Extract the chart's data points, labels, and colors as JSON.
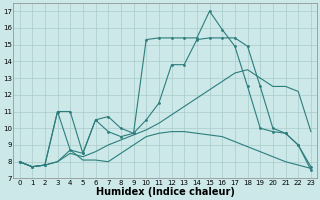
{
  "bg_color": "#cce8e8",
  "grid_color": "#aacccc",
  "line_color": "#2d7d7d",
  "xlabel": "Humidex (Indice chaleur)",
  "xlabel_fontsize": 7,
  "xlim": [
    -0.5,
    23.5
  ],
  "ylim": [
    7,
    17.5
  ],
  "xticks": [
    0,
    1,
    2,
    3,
    4,
    5,
    6,
    7,
    8,
    9,
    10,
    11,
    12,
    13,
    14,
    15,
    16,
    17,
    18,
    19,
    20,
    21,
    22,
    23
  ],
  "yticks": [
    7,
    8,
    9,
    10,
    11,
    12,
    13,
    14,
    15,
    16,
    17
  ],
  "line1_x": [
    0,
    1,
    2,
    3,
    4,
    5,
    6,
    7,
    8,
    9,
    10,
    11,
    12,
    13,
    14,
    15,
    16,
    17,
    18,
    19,
    20,
    21,
    22,
    23
  ],
  "line1_y": [
    8.0,
    7.7,
    7.8,
    8.0,
    8.7,
    8.1,
    8.1,
    8.0,
    8.5,
    9.0,
    9.5,
    9.7,
    9.8,
    9.8,
    9.7,
    9.6,
    9.5,
    9.2,
    8.9,
    8.6,
    8.3,
    8.0,
    7.8,
    7.6
  ],
  "line2_x": [
    0,
    1,
    2,
    3,
    4,
    5,
    6,
    7,
    8,
    9,
    10,
    11,
    12,
    13,
    14,
    15,
    16,
    17,
    18,
    19,
    20,
    21,
    22,
    23
  ],
  "line2_y": [
    8.0,
    7.7,
    7.8,
    8.0,
    8.5,
    8.3,
    8.6,
    9.0,
    9.3,
    9.6,
    9.9,
    10.3,
    10.8,
    11.3,
    11.8,
    12.3,
    12.8,
    13.3,
    13.5,
    13.0,
    12.5,
    12.5,
    12.2,
    9.8
  ],
  "line3_x": [
    0,
    1,
    2,
    3,
    4,
    5,
    6,
    7,
    8,
    9,
    10,
    11,
    12,
    13,
    14,
    15,
    16,
    17,
    18,
    19,
    20,
    21,
    22,
    23
  ],
  "line3_y": [
    8.0,
    7.7,
    7.8,
    11.0,
    11.0,
    8.5,
    10.5,
    10.7,
    10.0,
    9.7,
    10.5,
    11.5,
    13.8,
    13.8,
    15.3,
    15.4,
    15.4,
    15.4,
    14.9,
    12.5,
    10.0,
    9.7,
    9.0,
    7.7
  ],
  "line4_x": [
    0,
    1,
    2,
    3,
    4,
    5,
    6,
    7,
    8,
    9,
    10,
    11,
    12,
    13,
    14,
    15,
    16,
    17,
    18,
    19,
    20,
    21,
    22,
    23
  ],
  "line4_y": [
    8.0,
    7.7,
    7.8,
    11.0,
    8.7,
    8.5,
    10.5,
    9.8,
    9.5,
    9.7,
    15.3,
    15.4,
    15.4,
    15.4,
    15.4,
    17.0,
    15.9,
    14.9,
    12.5,
    10.0,
    9.8,
    9.7,
    9.0,
    7.5
  ]
}
